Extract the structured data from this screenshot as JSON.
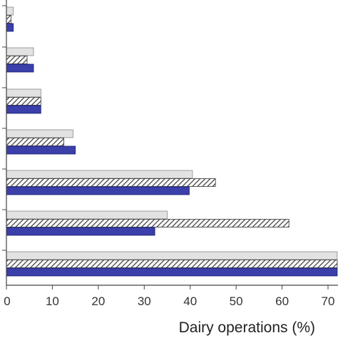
{
  "chart_data": {
    "type": "bar",
    "orientation": "horizontal",
    "title": "",
    "xlabel": "Dairy operations (%)",
    "ylabel": "",
    "xlim": [
      0,
      72
    ],
    "xticks": [
      0,
      10,
      20,
      30,
      40,
      50,
      60,
      70
    ],
    "grid": false,
    "legend": "none",
    "categories": [
      "",
      "",
      "",
      "",
      "",
      "",
      ""
    ],
    "series": [
      {
        "fill": "light-gray",
        "color": "#e2e2e2",
        "values": [
          1.5,
          5.9,
          7.5,
          14.5,
          40.5,
          35.0,
          72
        ]
      },
      {
        "fill": "hatched",
        "color": "#555555",
        "values": [
          1.0,
          4.5,
          7.5,
          12.5,
          45.5,
          61.5,
          72
        ]
      },
      {
        "fill": "blue",
        "color": "#3a3faa",
        "values": [
          1.5,
          5.9,
          7.5,
          15.0,
          39.8,
          32.3,
          72
        ]
      }
    ]
  }
}
